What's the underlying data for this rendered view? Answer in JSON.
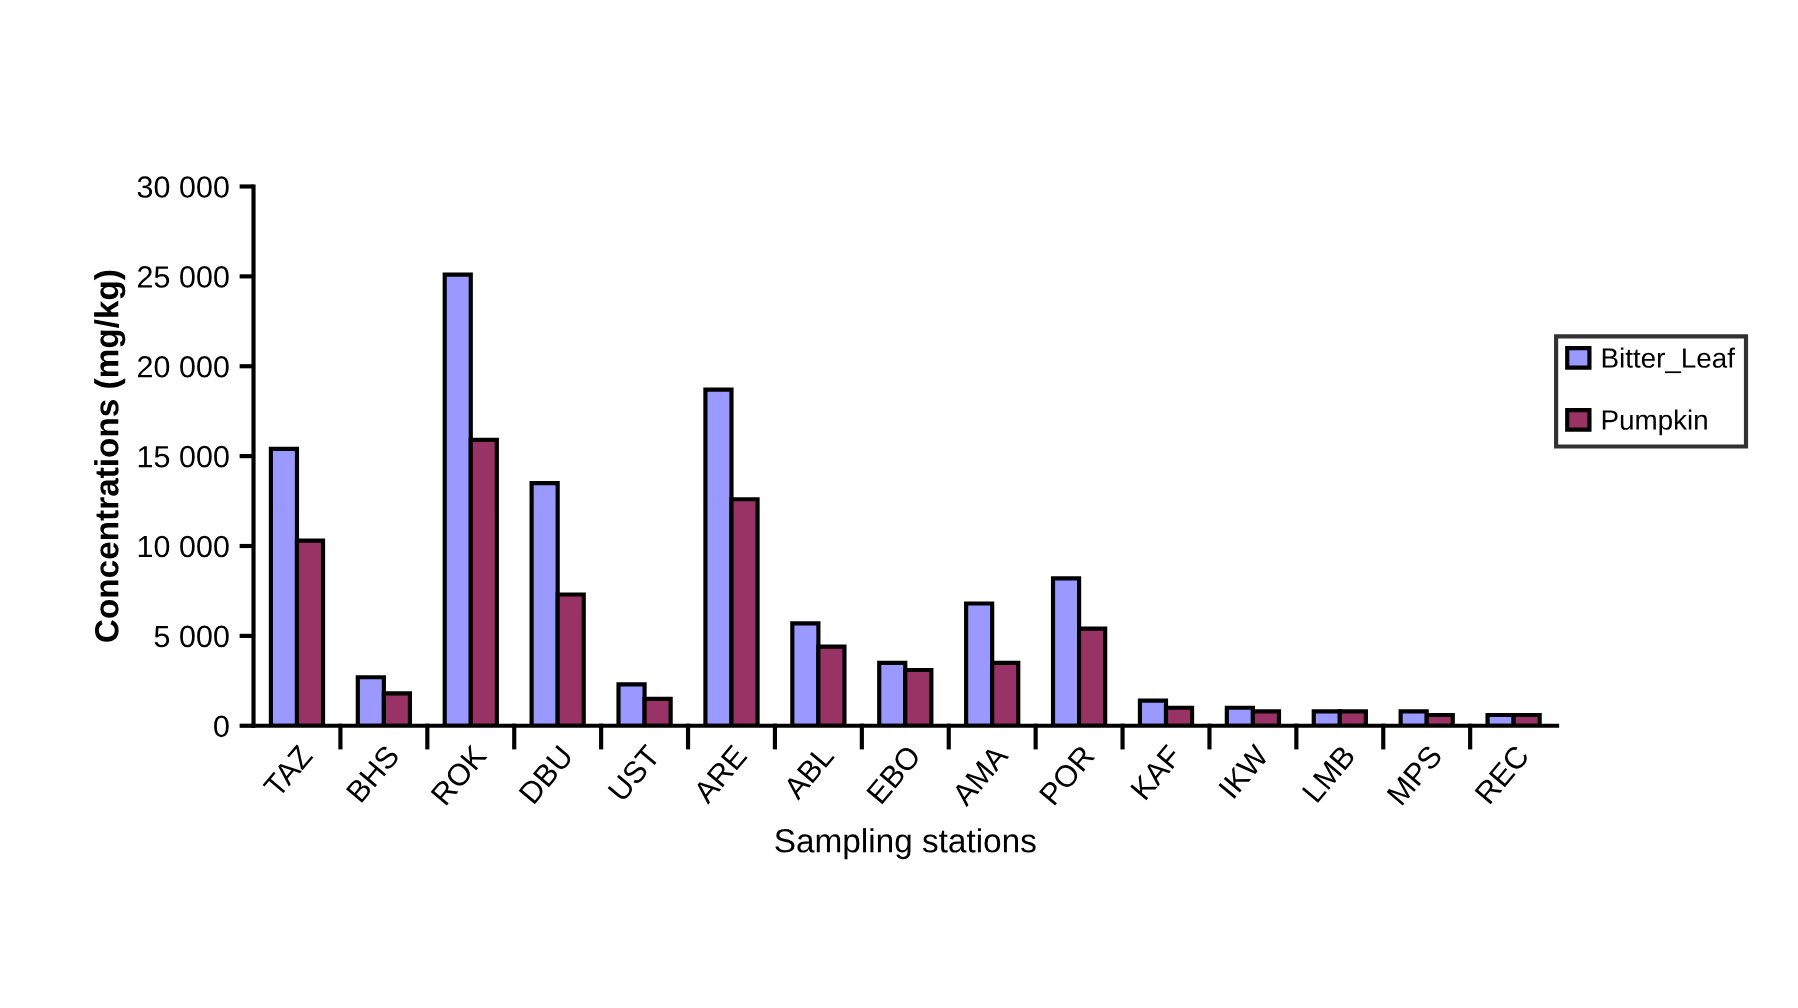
{
  "chart_data": {
    "type": "bar",
    "xlabel": "Sampling stations",
    "ylabel": "Concentrations (mg/kg)",
    "categories": [
      "TAZ",
      "BHS",
      "ROK",
      "DBU",
      "UST",
      "ARE",
      "ABL",
      "EBO",
      "AMA",
      "POR",
      "KAF",
      "IKW",
      "LMB",
      "MPS",
      "REC"
    ],
    "series": [
      {
        "name": "Bitter_Leaf",
        "color": "#9999ff",
        "values": [
          15400,
          2700,
          25100,
          13500,
          2300,
          18700,
          5700,
          3500,
          6800,
          8200,
          1400,
          1000,
          800,
          800,
          600
        ]
      },
      {
        "name": "Pumpkin",
        "color": "#993366",
        "values": [
          10300,
          1800,
          15900,
          7300,
          1500,
          12600,
          4400,
          3100,
          3500,
          5400,
          1000,
          800,
          800,
          600,
          600
        ]
      }
    ],
    "ylim": [
      0,
      30000
    ],
    "yticks": [
      0,
      {
        "value": 5000,
        "label": "5 000"
      },
      {
        "value": 10000,
        "label": "10 000"
      },
      {
        "value": 15000,
        "label": "15 000"
      },
      {
        "value": 20000,
        "label": "20 000"
      },
      {
        "value": 25000,
        "label": "25 000"
      },
      {
        "value": 30000,
        "label": "30 000"
      }
    ],
    "grid": false,
    "legend": "right"
  }
}
